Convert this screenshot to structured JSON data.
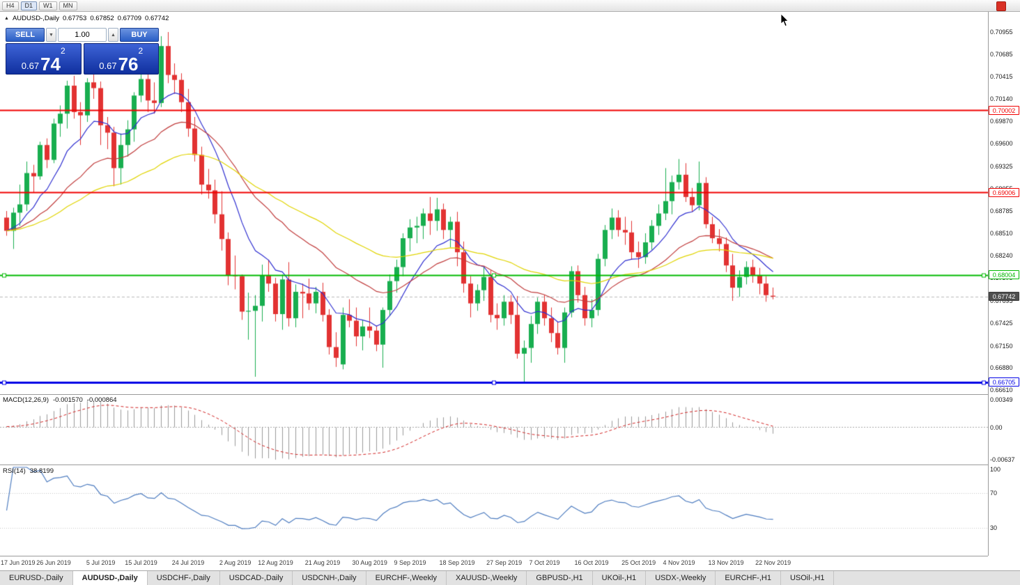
{
  "toolbar": {
    "timeframes": [
      "H4",
      "D1",
      "W1",
      "MN"
    ],
    "active": "D1"
  },
  "icons": {
    "collapse": "▲",
    "spinner_up": "▲",
    "spinner_down": "▼"
  },
  "chart": {
    "info": {
      "symbol": "AUDUSD-,Daily",
      "open": "0.67753",
      "high": "0.67852",
      "low": "0.67709",
      "close": "0.67742"
    },
    "colors": {
      "bull": "#18ae4f",
      "bear": "#e23232",
      "bid_line": "#b8b8b8"
    },
    "moving_averages": [
      {
        "period": 10,
        "color": "#2f2fd0"
      },
      {
        "period": 25,
        "color": "#c03c3c"
      },
      {
        "period": 50,
        "color": "#e0d400"
      }
    ],
    "levels": [
      {
        "label": "0.70002",
        "price": 0.70002,
        "color": "#f00000",
        "width": 2,
        "handles": false
      },
      {
        "label": "0.69006",
        "price": 0.69006,
        "color": "#f00000",
        "width": 2,
        "handles": false
      },
      {
        "label": "0.68004",
        "price": 0.68004,
        "color": "#00b800",
        "width": 2,
        "handles": true
      },
      {
        "label": "0.66705",
        "price": 0.66705,
        "color": "#0000e6",
        "width": 3,
        "handles": true
      }
    ],
    "bid": {
      "label": "0.67742",
      "price": 0.67742
    },
    "axis_ticks": [
      "0.70955",
      "0.70685",
      "0.70415",
      "0.70140",
      "0.69870",
      "0.69600",
      "0.69325",
      "0.69055",
      "0.68785",
      "0.68510",
      "0.68240",
      "0.67970",
      "0.67695",
      "0.67425",
      "0.67150",
      "0.66880",
      "0.66610"
    ]
  },
  "trade": {
    "sell_label": "SELL",
    "buy_label": "BUY",
    "volume": "1.00",
    "sell_price": {
      "prefix": "0.67",
      "pips": "74",
      "pipette": "2"
    },
    "buy_price": {
      "prefix": "0.67",
      "pips": "76",
      "pipette": "2"
    }
  },
  "macd": {
    "label": "MACD(12,26,9)",
    "value_main": "-0.001570",
    "value_signal": "-0.000864",
    "axis": [
      "0.00349",
      "0.00",
      "-0.00637"
    ],
    "colors": {
      "histogram": "#9a9a9a",
      "signal": "#d02020"
    }
  },
  "rsi": {
    "label": "RSI(14)",
    "value": "38.8199",
    "axis": [
      "100",
      "70",
      "30"
    ],
    "levels": [
      70,
      30
    ],
    "color": "#4c7bbf"
  },
  "tabs": [
    {
      "label": "EURUSD-,Daily",
      "active": false
    },
    {
      "label": "AUDUSD-,Daily",
      "active": true
    },
    {
      "label": "USDCHF-,Daily",
      "active": false
    },
    {
      "label": "USDCAD-,Daily",
      "active": false
    },
    {
      "label": "USDCNH-,Daily",
      "active": false
    },
    {
      "label": "EURCHF-,Weekly",
      "active": false
    },
    {
      "label": "XAUUSD-,Weekly",
      "active": false
    },
    {
      "label": "GBPUSD-,H1",
      "active": false
    },
    {
      "label": "UKOil-,H1",
      "active": false
    },
    {
      "label": "USDX-,Weekly",
      "active": false
    },
    {
      "label": "EURCHF-,H1",
      "active": false
    },
    {
      "label": "USOil-,H1",
      "active": false
    }
  ],
  "chart_data": {
    "type": "candlestick",
    "symbol": "AUDUSD",
    "timeframe": "Daily",
    "price_range": [
      0.66559,
      0.71195
    ],
    "x_labels": [
      {
        "i": 0,
        "label": "17 Jun 2019"
      },
      {
        "i": 7,
        "label": "26 Jun 2019"
      },
      {
        "i": 14,
        "label": "5 Jul 2019"
      },
      {
        "i": 20,
        "label": "15 Jul 2019"
      },
      {
        "i": 27,
        "label": "24 Jul 2019"
      },
      {
        "i": 34,
        "label": "2 Aug 2019"
      },
      {
        "i": 40,
        "label": "12 Aug 2019"
      },
      {
        "i": 47,
        "label": "21 Aug 2019"
      },
      {
        "i": 54,
        "label": "30 Aug 2019"
      },
      {
        "i": 60,
        "label": "9 Sep 2019"
      },
      {
        "i": 67,
        "label": "18 Sep 2019"
      },
      {
        "i": 74,
        "label": "27 Sep 2019"
      },
      {
        "i": 80,
        "label": "7 Oct 2019"
      },
      {
        "i": 87,
        "label": "16 Oct 2019"
      },
      {
        "i": 94,
        "label": "25 Oct 2019"
      },
      {
        "i": 100,
        "label": "4 Nov 2019"
      },
      {
        "i": 107,
        "label": "13 Nov 2019"
      },
      {
        "i": 114,
        "label": "22 Nov 2019"
      }
    ],
    "candles": [
      [
        0.687,
        0.6878,
        0.6848,
        0.6854
      ],
      [
        0.6854,
        0.6882,
        0.6832,
        0.6876
      ],
      [
        0.6876,
        0.691,
        0.686,
        0.6886
      ],
      [
        0.6886,
        0.6938,
        0.6878,
        0.6924
      ],
      [
        0.6924,
        0.6934,
        0.69,
        0.692
      ],
      [
        0.692,
        0.6962,
        0.6916,
        0.6958
      ],
      [
        0.6958,
        0.6966,
        0.693,
        0.694
      ],
      [
        0.694,
        0.699,
        0.6936,
        0.6984
      ],
      [
        0.6984,
        0.7006,
        0.6968,
        0.6996
      ],
      [
        0.6996,
        0.7036,
        0.6978,
        0.703
      ],
      [
        0.703,
        0.7042,
        0.699,
        0.6998
      ],
      [
        0.6998,
        0.701,
        0.6958,
        0.6994
      ],
      [
        0.6994,
        0.7039,
        0.6986,
        0.7034
      ],
      [
        0.7034,
        0.7048,
        0.7014,
        0.7027
      ],
      [
        0.7027,
        0.7035,
        0.6958,
        0.6982
      ],
      [
        0.6982,
        0.6992,
        0.6953,
        0.6973
      ],
      [
        0.6973,
        0.698,
        0.6908,
        0.693
      ],
      [
        0.693,
        0.6972,
        0.691,
        0.6958
      ],
      [
        0.6958,
        0.6988,
        0.6944,
        0.6977
      ],
      [
        0.6977,
        0.7022,
        0.6962,
        0.7018
      ],
      [
        0.7018,
        0.7047,
        0.701,
        0.7038
      ],
      [
        0.7038,
        0.7062,
        0.6998,
        0.7012
      ],
      [
        0.7012,
        0.7034,
        0.6996,
        0.7009
      ],
      [
        0.7009,
        0.709,
        0.7004,
        0.7078
      ],
      [
        0.7078,
        0.7095,
        0.7033,
        0.7043
      ],
      [
        0.7043,
        0.7057,
        0.702,
        0.7037
      ],
      [
        0.7037,
        0.7045,
        0.6998,
        0.701
      ],
      [
        0.701,
        0.7026,
        0.6968,
        0.6978
      ],
      [
        0.6978,
        0.6992,
        0.6938,
        0.6946
      ],
      [
        0.6946,
        0.6956,
        0.6898,
        0.691
      ],
      [
        0.691,
        0.6929,
        0.6893,
        0.6903
      ],
      [
        0.6903,
        0.6916,
        0.6863,
        0.6874
      ],
      [
        0.6874,
        0.6902,
        0.683,
        0.6844
      ],
      [
        0.6844,
        0.6852,
        0.6788,
        0.68
      ],
      [
        0.68,
        0.6824,
        0.6783,
        0.6799
      ],
      [
        0.6799,
        0.6801,
        0.6746,
        0.6756
      ],
      [
        0.6756,
        0.6779,
        0.6722,
        0.6757
      ],
      [
        0.6757,
        0.6776,
        0.6677,
        0.6763
      ],
      [
        0.6763,
        0.6813,
        0.6744,
        0.68
      ],
      [
        0.68,
        0.6819,
        0.678,
        0.679
      ],
      [
        0.679,
        0.6797,
        0.6744,
        0.6753
      ],
      [
        0.6753,
        0.6801,
        0.6734,
        0.6795
      ],
      [
        0.6795,
        0.6816,
        0.6738,
        0.6748
      ],
      [
        0.6748,
        0.6789,
        0.6737,
        0.678
      ],
      [
        0.678,
        0.679,
        0.6748,
        0.6778
      ],
      [
        0.6778,
        0.6796,
        0.6758,
        0.6766
      ],
      [
        0.6766,
        0.6786,
        0.6754,
        0.678
      ],
      [
        0.678,
        0.6791,
        0.6744,
        0.6752
      ],
      [
        0.6752,
        0.6759,
        0.6704,
        0.6713
      ],
      [
        0.6713,
        0.6731,
        0.6689,
        0.67
      ],
      [
        0.6692,
        0.6761,
        0.6686,
        0.6752
      ],
      [
        0.6752,
        0.6771,
        0.6737,
        0.6745
      ],
      [
        0.6745,
        0.6761,
        0.6714,
        0.6726
      ],
      [
        0.6726,
        0.6746,
        0.6709,
        0.6738
      ],
      [
        0.6738,
        0.6761,
        0.6724,
        0.6733
      ],
      [
        0.6733,
        0.6739,
        0.6708,
        0.6716
      ],
      [
        0.6716,
        0.6761,
        0.6688,
        0.6758
      ],
      [
        0.6758,
        0.6801,
        0.6751,
        0.6793
      ],
      [
        0.6793,
        0.6819,
        0.6779,
        0.681
      ],
      [
        0.681,
        0.6851,
        0.6799,
        0.6845
      ],
      [
        0.6845,
        0.6868,
        0.6829,
        0.6858
      ],
      [
        0.6858,
        0.6871,
        0.6839,
        0.686
      ],
      [
        0.686,
        0.6881,
        0.6844,
        0.6875
      ],
      [
        0.6875,
        0.6895,
        0.6849,
        0.6866
      ],
      [
        0.6866,
        0.6894,
        0.6854,
        0.688
      ],
      [
        0.688,
        0.6887,
        0.6844,
        0.6855
      ],
      [
        0.6855,
        0.6871,
        0.6834,
        0.6865
      ],
      [
        0.6865,
        0.6877,
        0.6811,
        0.6828
      ],
      [
        0.6828,
        0.6841,
        0.6779,
        0.679
      ],
      [
        0.679,
        0.6799,
        0.6749,
        0.6766
      ],
      [
        0.6766,
        0.6789,
        0.6757,
        0.6782
      ],
      [
        0.6782,
        0.6811,
        0.6769,
        0.6798
      ],
      [
        0.6798,
        0.6806,
        0.6743,
        0.6752
      ],
      [
        0.6752,
        0.6766,
        0.6734,
        0.6748
      ],
      [
        0.6748,
        0.6776,
        0.6739,
        0.6768
      ],
      [
        0.6768,
        0.6776,
        0.6741,
        0.6752
      ],
      [
        0.6752,
        0.6775,
        0.6699,
        0.6705
      ],
      [
        0.6705,
        0.6721,
        0.667,
        0.6712
      ],
      [
        0.6712,
        0.6751,
        0.6694,
        0.6741
      ],
      [
        0.6741,
        0.6773,
        0.6729,
        0.6768
      ],
      [
        0.6768,
        0.6776,
        0.6739,
        0.6748
      ],
      [
        0.6748,
        0.6761,
        0.6719,
        0.673
      ],
      [
        0.673,
        0.6743,
        0.6704,
        0.6712
      ],
      [
        0.6712,
        0.6761,
        0.6694,
        0.6755
      ],
      [
        0.6755,
        0.6811,
        0.6749,
        0.6805
      ],
      [
        0.6805,
        0.6812,
        0.6767,
        0.6776
      ],
      [
        0.6776,
        0.6786,
        0.6739,
        0.6748
      ],
      [
        0.6748,
        0.6771,
        0.6737,
        0.6758
      ],
      [
        0.6758,
        0.6826,
        0.6751,
        0.682
      ],
      [
        0.682,
        0.6861,
        0.6811,
        0.6855
      ],
      [
        0.6855,
        0.6881,
        0.6844,
        0.687
      ],
      [
        0.687,
        0.6879,
        0.6847,
        0.6855
      ],
      [
        0.6855,
        0.6871,
        0.6837,
        0.6852
      ],
      [
        0.6852,
        0.6866,
        0.6819,
        0.6828
      ],
      [
        0.6828,
        0.6841,
        0.6809,
        0.6822
      ],
      [
        0.6822,
        0.6851,
        0.6814,
        0.684
      ],
      [
        0.684,
        0.6867,
        0.6831,
        0.686
      ],
      [
        0.686,
        0.6886,
        0.6849,
        0.6875
      ],
      [
        0.6875,
        0.693,
        0.6867,
        0.689
      ],
      [
        0.689,
        0.6921,
        0.6874,
        0.6913
      ],
      [
        0.6913,
        0.6941,
        0.6904,
        0.6922
      ],
      [
        0.6922,
        0.6936,
        0.6889,
        0.6895
      ],
      [
        0.6895,
        0.6906,
        0.6877,
        0.6885
      ],
      [
        0.6885,
        0.6938,
        0.6879,
        0.6912
      ],
      [
        0.6912,
        0.6919,
        0.6857,
        0.6862
      ],
      [
        0.6862,
        0.6871,
        0.6839,
        0.6845
      ],
      [
        0.6845,
        0.6856,
        0.6829,
        0.6838
      ],
      [
        0.6838,
        0.6846,
        0.6804,
        0.6812
      ],
      [
        0.6812,
        0.6826,
        0.6769,
        0.6785
      ],
      [
        0.6785,
        0.6806,
        0.6774,
        0.6798
      ],
      [
        0.6798,
        0.6817,
        0.6789,
        0.681
      ],
      [
        0.681,
        0.6819,
        0.6791,
        0.68
      ],
      [
        0.68,
        0.6809,
        0.6777,
        0.679
      ],
      [
        0.679,
        0.6799,
        0.6768,
        0.6776
      ],
      [
        0.67753,
        0.67852,
        0.67709,
        0.67742
      ]
    ]
  }
}
